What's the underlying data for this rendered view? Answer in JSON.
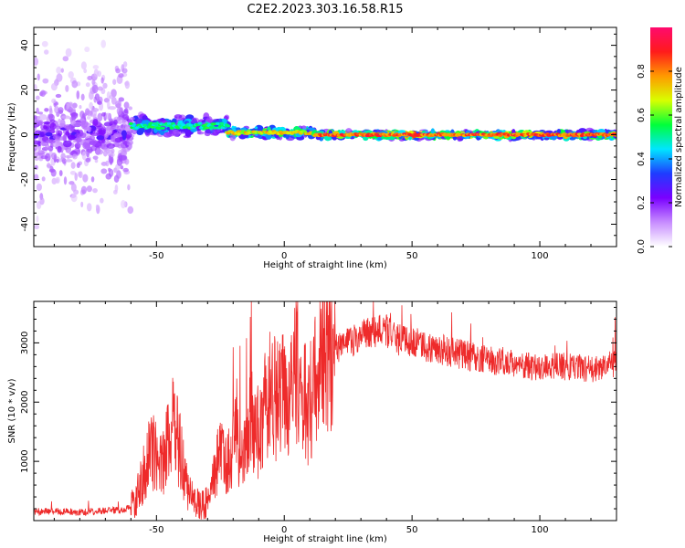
{
  "figure_title": "C2E2.2023.303.16.58.R15",
  "colors": {
    "snr_line": "#ee2a2a",
    "axis": "#000000",
    "colormap": [
      "#ffffff",
      "#c78cff",
      "#7a00ff",
      "#1f3cff",
      "#00e5ff",
      "#00ff3b",
      "#d8ff00",
      "#ff9a00",
      "#ff1b1b",
      "#ff0a6e"
    ]
  },
  "chart_data": [
    {
      "type": "heatmap",
      "title": "",
      "xlabel": "Height of straight line (km)",
      "ylabel": "Frequency (Hz)",
      "xlim": [
        -98,
        130
      ],
      "ylim": [
        -50,
        48
      ],
      "xticks": [
        -50,
        0,
        50,
        100
      ],
      "yticks": [
        -40,
        -20,
        0,
        20,
        40
      ],
      "xtick_labels": [
        "-50",
        "0",
        "50",
        "100"
      ],
      "ytick_labels": [
        "-40",
        "-20",
        "0",
        "20",
        "40"
      ],
      "grid": false,
      "colorbar": {
        "label": "Normalized spectral amplitude",
        "range": [
          0,
          1
        ],
        "ticks": [
          0.0,
          0.2,
          0.4,
          0.6,
          0.8
        ],
        "tick_labels": [
          "0.0",
          "0.2",
          "0.4",
          "0.6",
          "0.8"
        ]
      },
      "bands": [
        {
          "x_range": [
            -98,
            -60
          ],
          "freq_center": 0,
          "freq_halfwidth": 48,
          "amplitude": 0.2,
          "note": "scattered weak energy"
        },
        {
          "x_range": [
            -98,
            -60
          ],
          "freq_center": 0,
          "freq_halfwidth": 14,
          "amplitude": 0.3
        },
        {
          "x_range": [
            -60,
            -22
          ],
          "freq_center": 4,
          "freq_halfwidth": 6,
          "amplitude": 0.55
        },
        {
          "x_range": [
            -22,
            12
          ],
          "freq_center": 1,
          "freq_halfwidth": 3,
          "amplitude": 0.75
        },
        {
          "x_range": [
            12,
            130
          ],
          "freq_center": 0,
          "freq_halfwidth": 2,
          "amplitude": 0.9
        }
      ]
    },
    {
      "type": "line",
      "title": "",
      "xlabel": "Height of straight line (km)",
      "ylabel": "SNR (10 * v/v)",
      "xlim": [
        -98,
        130
      ],
      "ylim": [
        0,
        3700
      ],
      "xticks": [
        -50,
        0,
        50,
        100
      ],
      "yticks": [
        1000,
        2000,
        3000
      ],
      "xtick_labels": [
        "-50",
        "0",
        "50",
        "100"
      ],
      "ytick_labels": [
        "1000",
        "2000",
        "3000"
      ],
      "grid": false,
      "series": [
        {
          "x": [
            -98,
            -90,
            -80,
            -70,
            -62,
            -58,
            -55,
            -52,
            -50,
            -48,
            -46,
            -44,
            -42,
            -40,
            -38,
            -35,
            -32,
            -29,
            -27,
            -25,
            -23,
            -21,
            -19,
            -17,
            -15,
            -13,
            -11,
            -9,
            -7,
            -5,
            -3,
            -1,
            1,
            3,
            5,
            7,
            9,
            11,
            13,
            15,
            20,
            25,
            30,
            35,
            40,
            45,
            50,
            55,
            60,
            65,
            70,
            75,
            80,
            85,
            90,
            95,
            100,
            105,
            110,
            115,
            120,
            125,
            130
          ],
          "values": [
            150,
            160,
            140,
            170,
            180,
            350,
            800,
            1200,
            1100,
            900,
            1300,
            1600,
            1400,
            1000,
            600,
            300,
            250,
            400,
            800,
            1200,
            900,
            1100,
            1400,
            1000,
            1200,
            1700,
            1500,
            1600,
            2000,
            2200,
            2000,
            2100,
            2200,
            2300,
            2500,
            2200,
            1800,
            2200,
            2500,
            2700,
            2900,
            3000,
            3100,
            3200,
            3200,
            3050,
            3000,
            2950,
            2900,
            2850,
            2800,
            2750,
            2700,
            2700,
            2650,
            2600,
            2600,
            2600,
            2600,
            2600,
            2550,
            2600,
            2650
          ]
        }
      ]
    }
  ]
}
